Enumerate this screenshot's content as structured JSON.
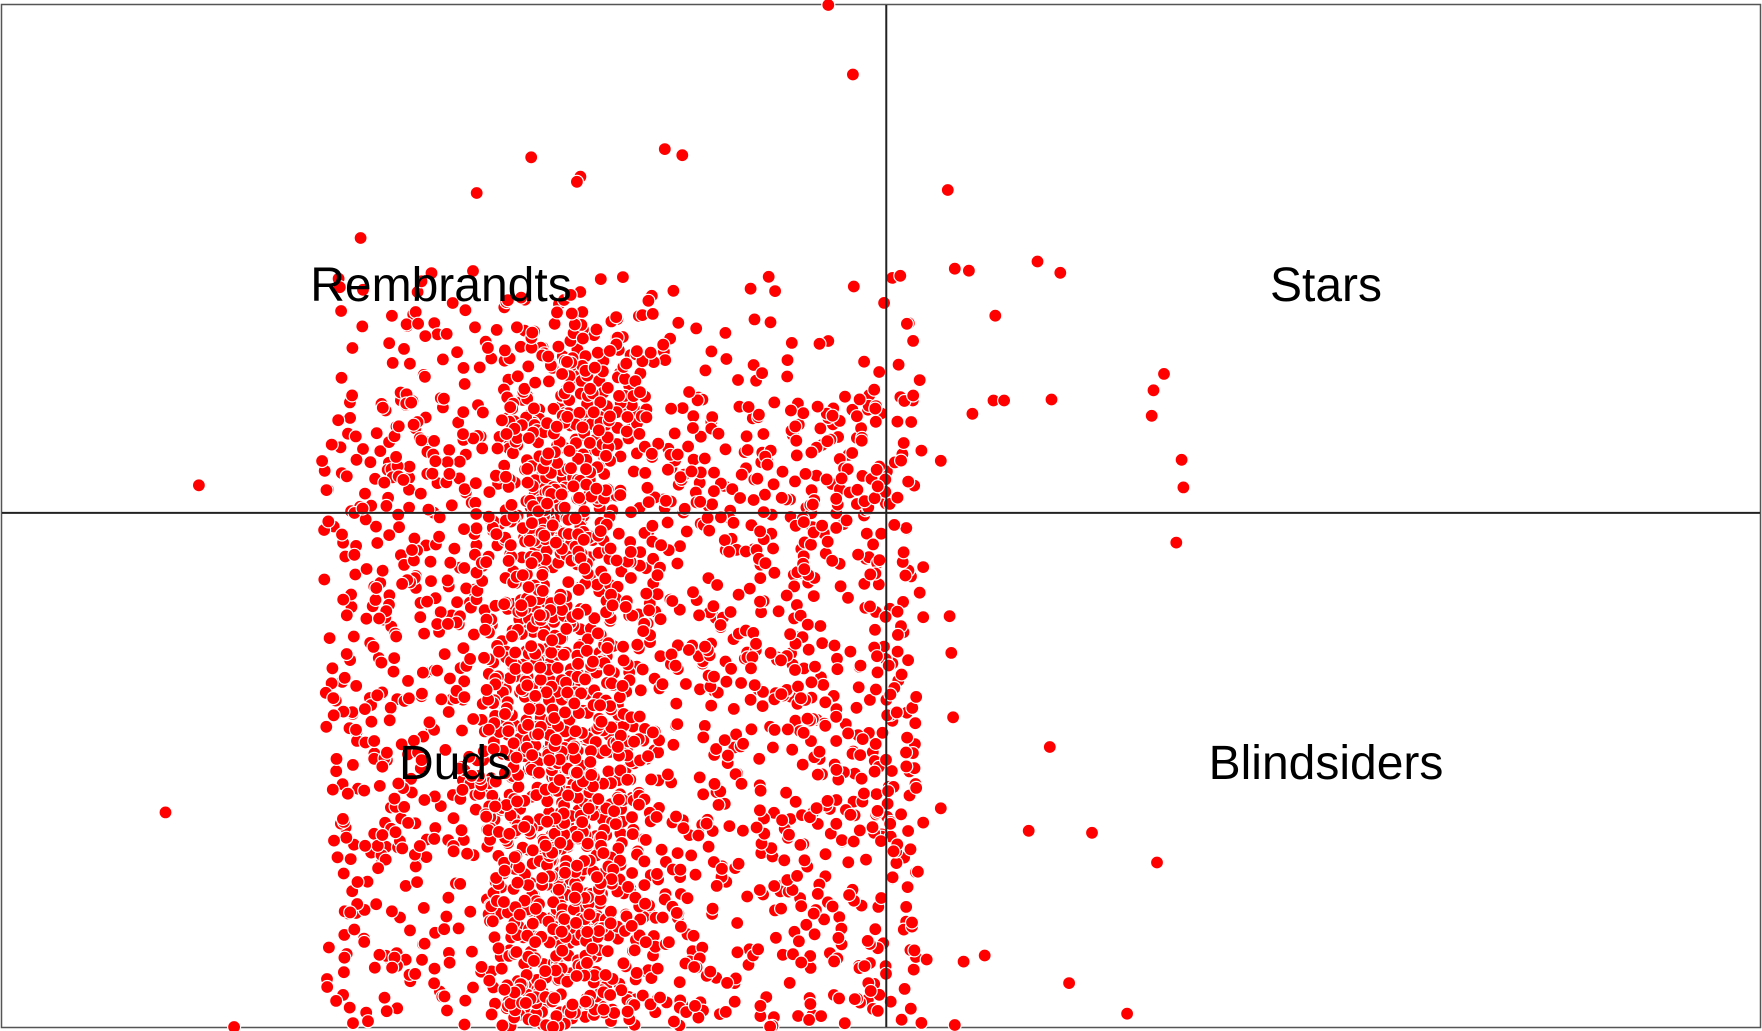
{
  "chart_data": {
    "type": "scatter",
    "title": "",
    "xlabel": "",
    "ylabel": "",
    "xlim": [
      0,
      100
    ],
    "ylim": [
      0,
      100
    ],
    "grid": false,
    "legend": "none",
    "divider": {
      "x": 50.3,
      "y": 50.3
    },
    "quadrant_labels": {
      "top_left": "Rembrandts",
      "top_right": "Stars",
      "bottom_left": "Duds",
      "bottom_right": "Blindsiders"
    },
    "marker_color": "#ff0000",
    "marker_edge": "#ffffff",
    "point_count": 3200,
    "cluster": {
      "x_range": [
        18,
        52
      ],
      "y_range": [
        0,
        60
      ]
    },
    "points": [
      [
        47.0,
        100.0
      ],
      [
        48.4,
        93.2
      ],
      [
        53.8,
        81.9
      ],
      [
        54.2,
        74.2
      ],
      [
        55.0,
        74.0
      ],
      [
        58.9,
        74.9
      ],
      [
        60.2,
        73.8
      ],
      [
        56.5,
        69.6
      ],
      [
        66.1,
        63.9
      ],
      [
        65.5,
        62.3
      ],
      [
        65.4,
        59.8
      ],
      [
        67.1,
        55.5
      ],
      [
        67.2,
        52.8
      ],
      [
        66.8,
        47.4
      ],
      [
        59.7,
        61.4
      ],
      [
        55.2,
        60.0
      ],
      [
        56.4,
        61.3
      ],
      [
        57.0,
        61.3
      ],
      [
        53.4,
        55.4
      ],
      [
        11.2,
        53.0
      ],
      [
        9.3,
        21.0
      ],
      [
        62.0,
        19.0
      ],
      [
        59.6,
        27.4
      ],
      [
        58.4,
        19.2
      ],
      [
        65.7,
        16.1
      ],
      [
        55.9,
        7.0
      ],
      [
        54.7,
        6.4
      ],
      [
        60.7,
        4.3
      ],
      [
        64.0,
        1.3
      ],
      [
        53.4,
        21.4
      ],
      [
        53.9,
        40.2
      ],
      [
        54.0,
        36.6
      ],
      [
        54.1,
        30.3
      ],
      [
        13.2,
        0.0
      ],
      [
        54.2,
        0.2
      ],
      [
        51.1,
        73.5
      ],
      [
        51.0,
        64.8
      ],
      [
        52.2,
        63.3
      ],
      [
        52.3,
        56.4
      ],
      [
        52.4,
        45.0
      ],
      [
        52.2,
        42.5
      ],
      [
        52.4,
        40.1
      ],
      [
        52.0,
        32.3
      ],
      [
        52.0,
        23.4
      ],
      [
        52.4,
        20.0
      ],
      [
        52.1,
        15.2
      ],
      [
        51.9,
        7.5
      ],
      [
        52.6,
        6.6
      ],
      [
        52.3,
        0.4
      ],
      [
        30.1,
        85.1
      ],
      [
        32.9,
        83.2
      ],
      [
        32.7,
        82.7
      ],
      [
        38.7,
        85.3
      ],
      [
        37.7,
        85.9
      ],
      [
        27.0,
        81.6
      ],
      [
        20.4,
        77.2
      ]
    ]
  }
}
